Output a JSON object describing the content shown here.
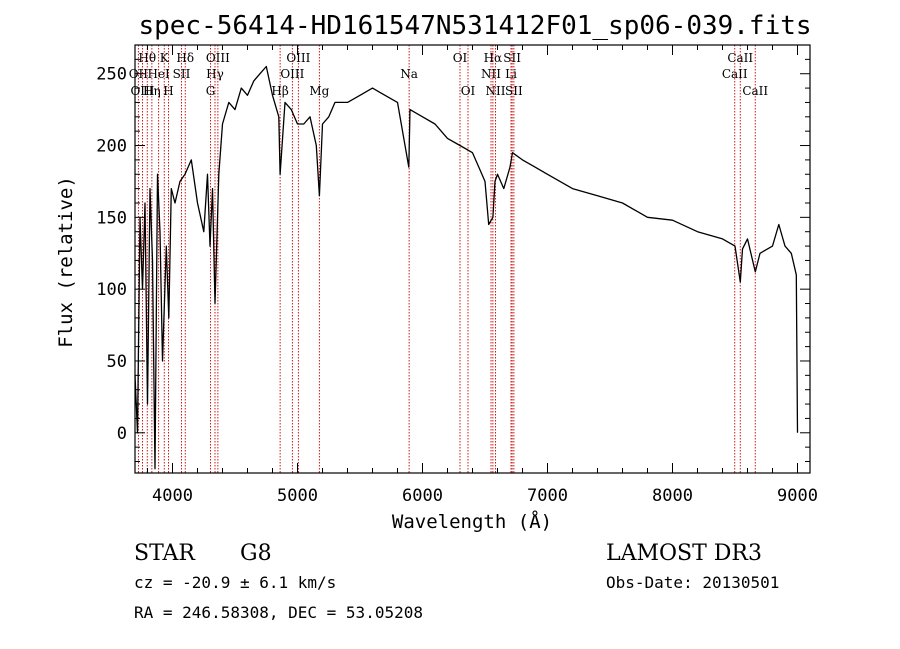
{
  "chart_data": {
    "type": "line",
    "title": "spec-56414-HD161547N531412F01_sp06-039.fits",
    "xlabel": "Wavelength (Å)",
    "ylabel": "Flux (relative)",
    "xlim": [
      3700,
      9100
    ],
    "ylim": [
      -28,
      270
    ],
    "xticks": [
      4000,
      5000,
      6000,
      7000,
      8000,
      9000
    ],
    "yticks": [
      0,
      50,
      100,
      150,
      200,
      250
    ],
    "grid": false,
    "series": [
      {
        "name": "spectrum",
        "x": [
          3700,
          3720,
          3740,
          3760,
          3780,
          3800,
          3820,
          3840,
          3860,
          3880,
          3900,
          3920,
          3950,
          3970,
          3990,
          4020,
          4060,
          4100,
          4150,
          4200,
          4250,
          4280,
          4300,
          4320,
          4340,
          4370,
          4400,
          4450,
          4500,
          4550,
          4600,
          4650,
          4700,
          4750,
          4800,
          4850,
          4861,
          4900,
          4950,
          5000,
          5050,
          5100,
          5150,
          5175,
          5200,
          5250,
          5300,
          5400,
          5500,
          5600,
          5700,
          5800,
          5890,
          5900,
          6000,
          6100,
          6200,
          6300,
          6400,
          6450,
          6500,
          6530,
          6563,
          6580,
          6600,
          6650,
          6700,
          6720,
          6800,
          6900,
          7000,
          7200,
          7400,
          7600,
          7800,
          8000,
          8200,
          8400,
          8500,
          8542,
          8560,
          8600,
          8662,
          8700,
          8800,
          8850,
          8900,
          8950,
          8990,
          9000
        ],
        "y": [
          40,
          0,
          150,
          100,
          160,
          20,
          170,
          120,
          -25,
          180,
          140,
          50,
          130,
          80,
          170,
          160,
          175,
          180,
          190,
          160,
          140,
          180,
          130,
          170,
          90,
          180,
          215,
          230,
          225,
          240,
          235,
          245,
          250,
          255,
          235,
          220,
          180,
          230,
          225,
          215,
          215,
          220,
          200,
          165,
          215,
          220,
          230,
          230,
          235,
          240,
          235,
          230,
          185,
          225,
          220,
          215,
          205,
          200,
          195,
          185,
          175,
          145,
          150,
          175,
          180,
          170,
          185,
          195,
          190,
          185,
          180,
          170,
          165,
          160,
          150,
          148,
          140,
          135,
          130,
          105,
          128,
          135,
          112,
          125,
          130,
          145,
          130,
          125,
          110,
          0
        ]
      }
    ],
    "spectral_lines": [
      {
        "name": "Hθ",
        "wavelength": 3798,
        "row": 1
      },
      {
        "name": "OII",
        "wavelength": 3727,
        "row": 2
      },
      {
        "name": "OIII",
        "wavelength": 3760,
        "row": 3
      },
      {
        "name": "Hη",
        "wavelength": 3835,
        "row": 3
      },
      {
        "name": "K",
        "wavelength": 3934,
        "row": 1
      },
      {
        "name": "HeI",
        "wavelength": 3889,
        "row": 2
      },
      {
        "name": "H",
        "wavelength": 3968,
        "row": 3
      },
      {
        "name": "Hδ",
        "wavelength": 4102,
        "row": 1
      },
      {
        "name": "SII",
        "wavelength": 4072,
        "row": 2
      },
      {
        "name": "OIII",
        "wavelength": 4363,
        "row": 1
      },
      {
        "name": "Hγ",
        "wavelength": 4340,
        "row": 2
      },
      {
        "name": "G",
        "wavelength": 4304,
        "row": 3
      },
      {
        "name": "OIII",
        "wavelength": 5007,
        "row": 1
      },
      {
        "name": "OIII",
        "wavelength": 4959,
        "row": 2
      },
      {
        "name": "Hβ",
        "wavelength": 4861,
        "row": 3
      },
      {
        "name": "Mg",
        "wavelength": 5175,
        "row": 3
      },
      {
        "name": "Na",
        "wavelength": 5893,
        "row": 2
      },
      {
        "name": "OI",
        "wavelength": 6300,
        "row": 1
      },
      {
        "name": "OI",
        "wavelength": 6364,
        "row": 3
      },
      {
        "name": "Hα",
        "wavelength": 6563,
        "row": 1
      },
      {
        "name": "NII",
        "wavelength": 6548,
        "row": 2
      },
      {
        "name": "NII",
        "wavelength": 6584,
        "row": 3
      },
      {
        "name": "SII",
        "wavelength": 6717,
        "row": 1
      },
      {
        "name": "Li",
        "wavelength": 6708,
        "row": 2
      },
      {
        "name": "SII",
        "wavelength": 6731,
        "row": 3
      },
      {
        "name": "CaII",
        "wavelength": 8542,
        "row": 1
      },
      {
        "name": "CaII",
        "wavelength": 8498,
        "row": 2
      },
      {
        "name": "CaII",
        "wavelength": 8662,
        "row": 3
      }
    ]
  },
  "info": {
    "class_label": "STAR",
    "subclass": "G8",
    "survey": "LAMOST DR3",
    "redshift": "cz = -20.9 ± 6.1 km/s",
    "obs_date": "Obs-Date: 20130501",
    "coords": "RA = 246.58308, DEC =  53.05208"
  },
  "colors": {
    "line_marker": "#cc0000",
    "spectrum": "#000000"
  }
}
